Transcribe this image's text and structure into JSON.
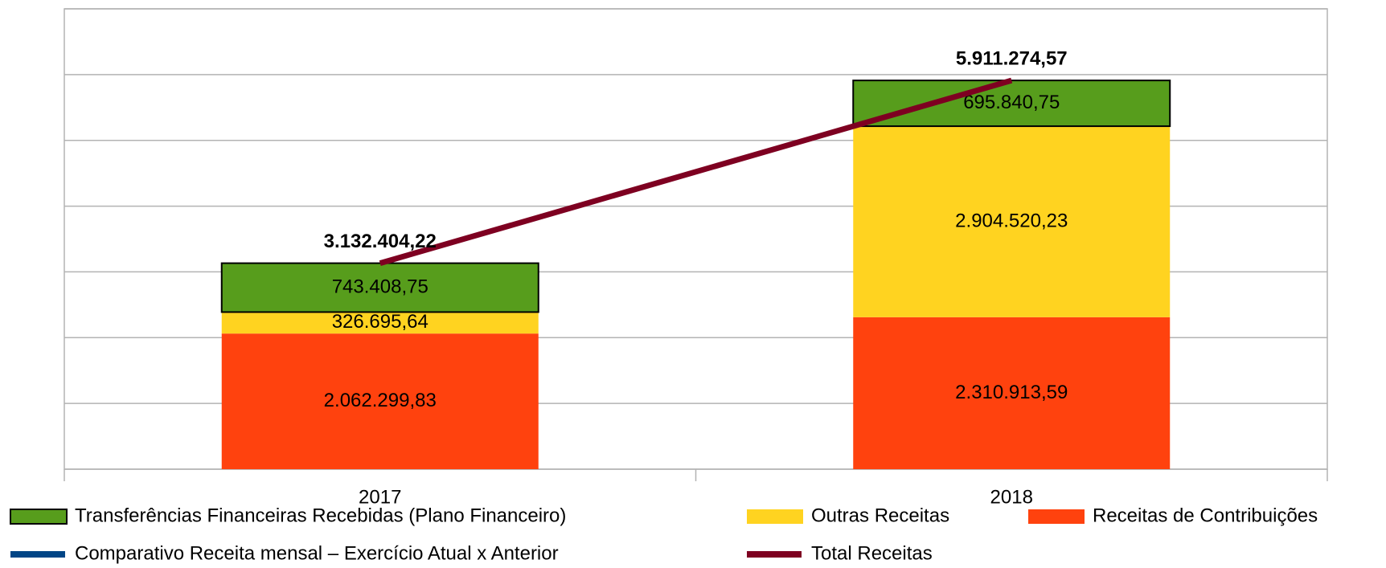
{
  "chart_data": {
    "type": "bar",
    "categories": [
      "2017",
      "2018"
    ],
    "series": [
      {
        "name": "Transferências Financeiras Recebidas (Plano Financeiro)",
        "type": "bar",
        "color": "#579d1c",
        "values": [
          743408.75,
          695840.75
        ],
        "value_labels": [
          "743.408,75",
          "695.840,75"
        ]
      },
      {
        "name": "Outras Receitas",
        "type": "bar",
        "color": "#ffd320",
        "values": [
          326695.64,
          2904520.23
        ],
        "value_labels": [
          "326.695,64",
          "2.904.520,23"
        ]
      },
      {
        "name": "Receitas de Contribuições",
        "type": "bar",
        "color": "#ff420e",
        "values": [
          2062299.83,
          2310913.59
        ],
        "value_labels": [
          "2.062.299,83",
          "2.310.913,59"
        ]
      },
      {
        "name": "Comparativo Receita mensal – Exercício Atual x Anterior",
        "type": "line",
        "color": "#004586",
        "values": [
          null,
          null
        ]
      },
      {
        "name": "Total Receitas",
        "type": "line",
        "color": "#7e0021",
        "values": [
          3132404.22,
          5911274.57
        ],
        "value_labels": [
          "3.132.404,22",
          "5.911.274,57"
        ]
      }
    ],
    "stacked": true,
    "ylim": [
      0,
      7000000
    ],
    "yticks": [
      0,
      1000000,
      2000000,
      3000000,
      4000000,
      5000000,
      6000000,
      7000000
    ],
    "grid": true
  }
}
